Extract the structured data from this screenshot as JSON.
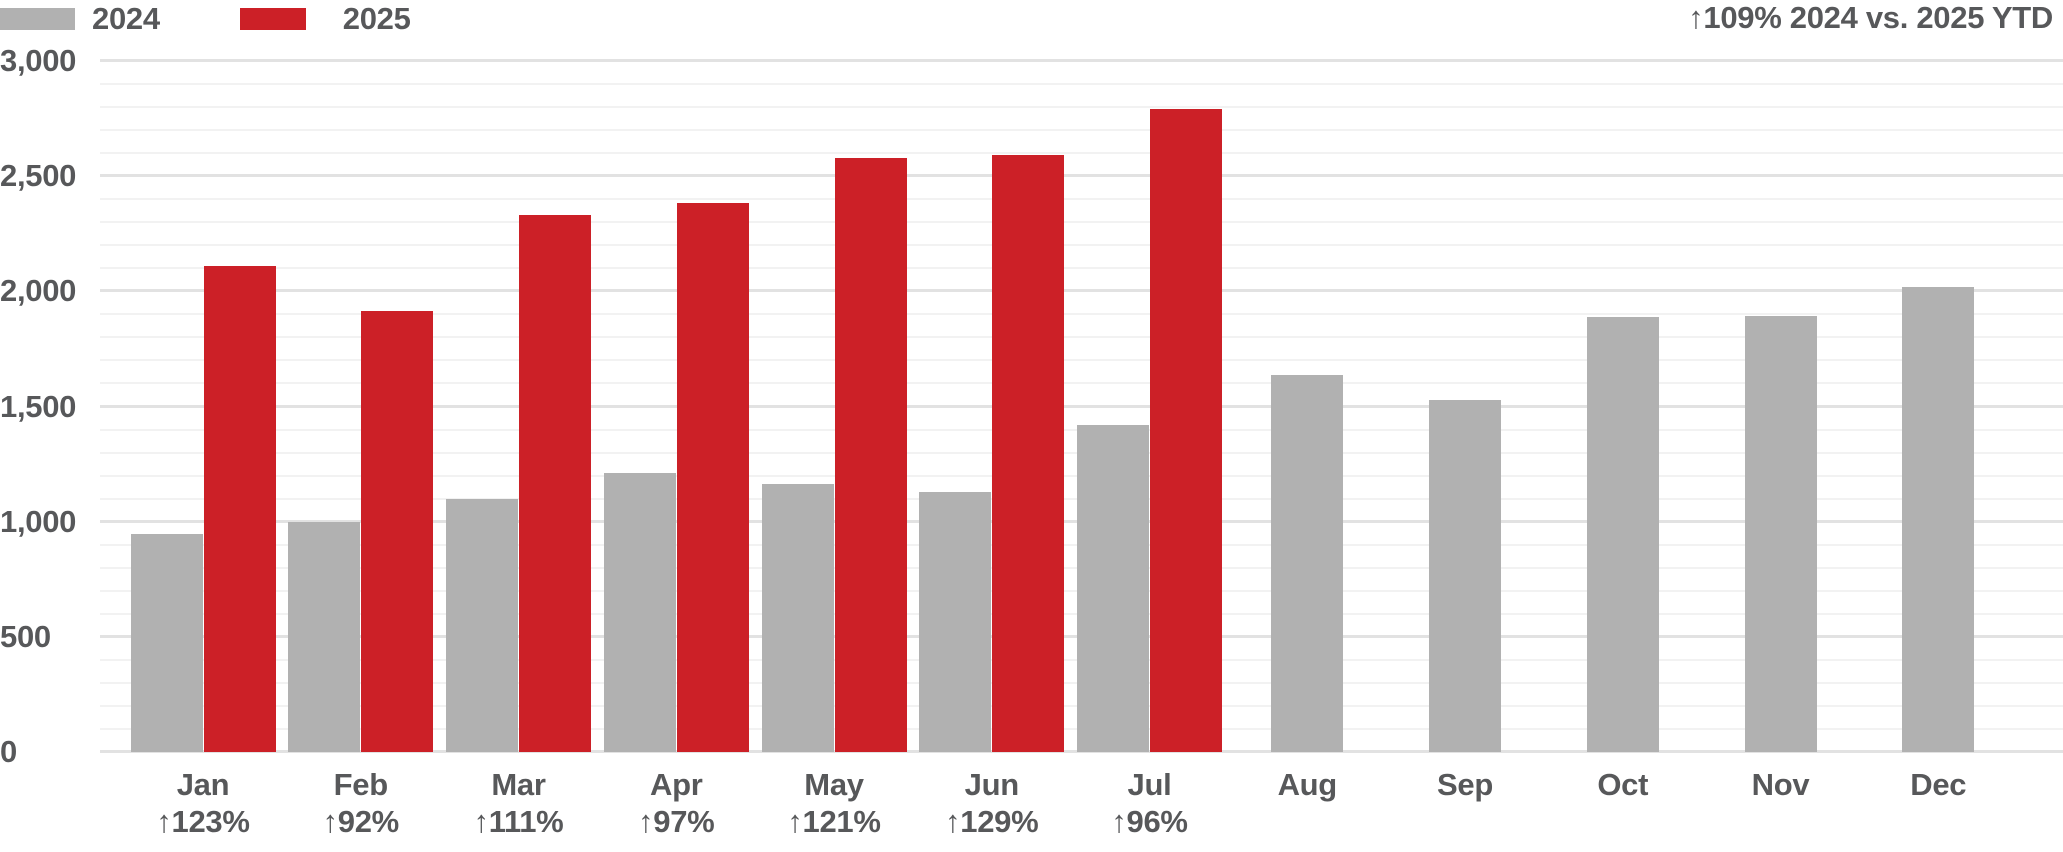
{
  "legend": {
    "items": [
      {
        "label": "2024",
        "color": "#b1b1b1"
      },
      {
        "label": "2025",
        "color": "#cc2027"
      }
    ]
  },
  "annotation": {
    "ytd_label": "↑109% 2024 vs. 2025 YTD"
  },
  "chart_data": {
    "type": "bar",
    "title": "",
    "xlabel": "",
    "ylabel": "",
    "categories": [
      "Jan",
      "Feb",
      "Mar",
      "Apr",
      "May",
      "Jun",
      "Jul",
      "Aug",
      "Sep",
      "Oct",
      "Nov",
      "Dec"
    ],
    "series": [
      {
        "name": "2024",
        "color": "#b1b1b1",
        "values": [
          945,
          1000,
          1100,
          1210,
          1165,
          1130,
          1420,
          1635,
          1530,
          1890,
          1895,
          2020
        ]
      },
      {
        "name": "2025",
        "color": "#cc2027",
        "values": [
          2110,
          1915,
          2330,
          2385,
          2580,
          2590,
          2790,
          null,
          null,
          null,
          null,
          null
        ]
      }
    ],
    "growth_labels": [
      "↑123%",
      "↑92%",
      "↑111%",
      "↑97%",
      "↑121%",
      "↑129%",
      "↑96%",
      "",
      "",
      "",
      "",
      ""
    ],
    "ytd_annotation": "↑109% 2024 vs. 2025 YTD",
    "ylim": [
      0,
      3000
    ],
    "y_ticks": [
      {
        "value": 0,
        "label": "0"
      },
      {
        "value": 500,
        "label": "500"
      },
      {
        "value": 1000,
        "label": "1,000"
      },
      {
        "value": 1500,
        "label": "1,500"
      },
      {
        "value": 2000,
        "label": "2,000"
      },
      {
        "value": 2500,
        "label": "2,500"
      },
      {
        "value": 3000,
        "label": "3,000"
      }
    ],
    "grid": {
      "visible": true,
      "minor_step": 100,
      "major_step": 500
    },
    "legend_position": "top-left"
  }
}
